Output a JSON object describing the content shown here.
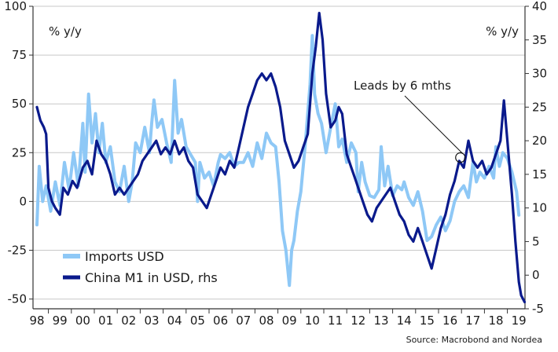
{
  "chart_data": {
    "type": "line",
    "title": "",
    "left_unit": "% y/y",
    "right_unit": "% y/y",
    "x_start_year": 1998,
    "x_end_year": 2019,
    "x_tick_labels": [
      "98",
      "99",
      "00",
      "01",
      "02",
      "03",
      "04",
      "05",
      "06",
      "07",
      "08",
      "09",
      "10",
      "11",
      "12",
      "13",
      "14",
      "15",
      "16",
      "17",
      "18",
      "19"
    ],
    "left_axis": {
      "ylim": [
        -55,
        100
      ],
      "ticks": [
        100,
        75,
        50,
        25,
        0,
        -25,
        -50
      ]
    },
    "right_axis": {
      "ylim": [
        -5,
        40
      ],
      "ticks": [
        40,
        35,
        30,
        25,
        20,
        15,
        10,
        5,
        0,
        -5
      ]
    },
    "grid": true,
    "legend_position": "bottom-left",
    "series": [
      {
        "name": "Imports USD",
        "axis": "left",
        "color": "#8ec8f6",
        "points": [
          [
            1998.0,
            -12
          ],
          [
            1998.1,
            18
          ],
          [
            1998.25,
            0
          ],
          [
            1998.4,
            8
          ],
          [
            1998.6,
            -5
          ],
          [
            1998.8,
            10
          ],
          [
            1999.0,
            -2
          ],
          [
            1999.2,
            20
          ],
          [
            1999.4,
            6
          ],
          [
            1999.6,
            25
          ],
          [
            1999.8,
            8
          ],
          [
            2000.0,
            40
          ],
          [
            2000.1,
            15
          ],
          [
            2000.25,
            55
          ],
          [
            2000.4,
            30
          ],
          [
            2000.55,
            45
          ],
          [
            2000.7,
            25
          ],
          [
            2000.85,
            40
          ],
          [
            2001.0,
            20
          ],
          [
            2001.2,
            28
          ],
          [
            2001.4,
            10
          ],
          [
            2001.6,
            5
          ],
          [
            2001.8,
            18
          ],
          [
            2002.0,
            0
          ],
          [
            2002.15,
            10
          ],
          [
            2002.3,
            30
          ],
          [
            2002.5,
            25
          ],
          [
            2002.7,
            38
          ],
          [
            2002.9,
            25
          ],
          [
            2003.0,
            40
          ],
          [
            2003.1,
            52
          ],
          [
            2003.25,
            38
          ],
          [
            2003.45,
            42
          ],
          [
            2003.65,
            30
          ],
          [
            2003.85,
            20
          ],
          [
            2004.0,
            62
          ],
          [
            2004.15,
            35
          ],
          [
            2004.3,
            42
          ],
          [
            2004.5,
            28
          ],
          [
            2004.7,
            24
          ],
          [
            2004.9,
            20
          ],
          [
            2005.0,
            0
          ],
          [
            2005.1,
            20
          ],
          [
            2005.3,
            12
          ],
          [
            2005.5,
            15
          ],
          [
            2005.7,
            8
          ],
          [
            2005.9,
            20
          ],
          [
            2006.0,
            24
          ],
          [
            2006.2,
            22
          ],
          [
            2006.4,
            25
          ],
          [
            2006.6,
            18
          ],
          [
            2006.8,
            20
          ],
          [
            2007.0,
            20
          ],
          [
            2007.2,
            25
          ],
          [
            2007.4,
            18
          ],
          [
            2007.6,
            30
          ],
          [
            2007.8,
            22
          ],
          [
            2008.0,
            35
          ],
          [
            2008.2,
            30
          ],
          [
            2008.4,
            28
          ],
          [
            2008.55,
            10
          ],
          [
            2008.7,
            -15
          ],
          [
            2008.85,
            -25
          ],
          [
            2009.0,
            -43
          ],
          [
            2009.1,
            -25
          ],
          [
            2009.2,
            -20
          ],
          [
            2009.35,
            -5
          ],
          [
            2009.5,
            5
          ],
          [
            2009.7,
            30
          ],
          [
            2009.9,
            60
          ],
          [
            2010.0,
            85
          ],
          [
            2010.1,
            55
          ],
          [
            2010.25,
            45
          ],
          [
            2010.4,
            40
          ],
          [
            2010.6,
            25
          ],
          [
            2010.8,
            38
          ],
          [
            2011.0,
            50
          ],
          [
            2011.15,
            28
          ],
          [
            2011.3,
            32
          ],
          [
            2011.5,
            20
          ],
          [
            2011.7,
            30
          ],
          [
            2011.9,
            25
          ],
          [
            2012.0,
            5
          ],
          [
            2012.15,
            20
          ],
          [
            2012.3,
            10
          ],
          [
            2012.5,
            3
          ],
          [
            2012.7,
            2
          ],
          [
            2012.9,
            6
          ],
          [
            2013.0,
            28
          ],
          [
            2013.15,
            8
          ],
          [
            2013.3,
            18
          ],
          [
            2013.5,
            3
          ],
          [
            2013.7,
            8
          ],
          [
            2013.9,
            6
          ],
          [
            2014.0,
            10
          ],
          [
            2014.2,
            2
          ],
          [
            2014.4,
            -2
          ],
          [
            2014.6,
            5
          ],
          [
            2014.8,
            -5
          ],
          [
            2015.0,
            -20
          ],
          [
            2015.2,
            -18
          ],
          [
            2015.4,
            -12
          ],
          [
            2015.6,
            -8
          ],
          [
            2015.8,
            -15
          ],
          [
            2016.0,
            -10
          ],
          [
            2016.2,
            0
          ],
          [
            2016.4,
            5
          ],
          [
            2016.6,
            8
          ],
          [
            2016.8,
            2
          ],
          [
            2017.0,
            20
          ],
          [
            2017.15,
            10
          ],
          [
            2017.3,
            15
          ],
          [
            2017.5,
            12
          ],
          [
            2017.7,
            18
          ],
          [
            2017.9,
            12
          ],
          [
            2018.0,
            28
          ],
          [
            2018.15,
            18
          ],
          [
            2018.3,
            25
          ],
          [
            2018.5,
            22
          ],
          [
            2018.7,
            15
          ],
          [
            2018.9,
            5
          ],
          [
            2019.0,
            -7
          ]
        ]
      },
      {
        "name": "China M1 in USD, rhs",
        "axis": "right",
        "color": "#0a1a8c",
        "points": [
          [
            1998.0,
            25
          ],
          [
            1998.15,
            23
          ],
          [
            1998.3,
            22
          ],
          [
            1998.4,
            21
          ],
          [
            1998.5,
            13
          ],
          [
            1998.65,
            11
          ],
          [
            1998.8,
            10
          ],
          [
            1999.0,
            9
          ],
          [
            1999.15,
            13
          ],
          [
            1999.35,
            12
          ],
          [
            1999.55,
            14
          ],
          [
            1999.75,
            13
          ],
          [
            2000.0,
            16
          ],
          [
            2000.2,
            17
          ],
          [
            2000.4,
            15
          ],
          [
            2000.6,
            20
          ],
          [
            2000.8,
            18
          ],
          [
            2001.0,
            17
          ],
          [
            2001.2,
            15
          ],
          [
            2001.4,
            12
          ],
          [
            2001.6,
            13
          ],
          [
            2001.8,
            12
          ],
          [
            2002.0,
            13
          ],
          [
            2002.2,
            14
          ],
          [
            2002.4,
            15
          ],
          [
            2002.6,
            17
          ],
          [
            2002.8,
            18
          ],
          [
            2003.0,
            19
          ],
          [
            2003.2,
            20
          ],
          [
            2003.4,
            18
          ],
          [
            2003.6,
            19
          ],
          [
            2003.8,
            18
          ],
          [
            2004.0,
            20
          ],
          [
            2004.2,
            18
          ],
          [
            2004.4,
            19
          ],
          [
            2004.6,
            17
          ],
          [
            2004.8,
            16
          ],
          [
            2005.0,
            12
          ],
          [
            2005.2,
            11
          ],
          [
            2005.4,
            10
          ],
          [
            2005.6,
            12
          ],
          [
            2005.8,
            14
          ],
          [
            2006.0,
            16
          ],
          [
            2006.2,
            15
          ],
          [
            2006.4,
            17
          ],
          [
            2006.6,
            16
          ],
          [
            2006.8,
            19
          ],
          [
            2007.0,
            22
          ],
          [
            2007.2,
            25
          ],
          [
            2007.4,
            27
          ],
          [
            2007.6,
            29
          ],
          [
            2007.8,
            30
          ],
          [
            2008.0,
            29
          ],
          [
            2008.2,
            30
          ],
          [
            2008.4,
            28
          ],
          [
            2008.6,
            25
          ],
          [
            2008.8,
            20
          ],
          [
            2009.0,
            18
          ],
          [
            2009.2,
            16
          ],
          [
            2009.4,
            17
          ],
          [
            2009.6,
            19
          ],
          [
            2009.8,
            21
          ],
          [
            2010.0,
            30
          ],
          [
            2010.15,
            34
          ],
          [
            2010.3,
            39
          ],
          [
            2010.45,
            35
          ],
          [
            2010.6,
            27
          ],
          [
            2010.8,
            22
          ],
          [
            2011.0,
            23
          ],
          [
            2011.15,
            25
          ],
          [
            2011.3,
            24
          ],
          [
            2011.5,
            18
          ],
          [
            2011.7,
            16
          ],
          [
            2011.9,
            14
          ],
          [
            2012.0,
            13
          ],
          [
            2012.2,
            11
          ],
          [
            2012.4,
            9
          ],
          [
            2012.6,
            8
          ],
          [
            2012.8,
            10
          ],
          [
            2013.0,
            11
          ],
          [
            2013.2,
            12
          ],
          [
            2013.4,
            13
          ],
          [
            2013.6,
            11
          ],
          [
            2013.8,
            9
          ],
          [
            2014.0,
            8
          ],
          [
            2014.2,
            6
          ],
          [
            2014.4,
            5
          ],
          [
            2014.6,
            7
          ],
          [
            2014.8,
            5
          ],
          [
            2015.0,
            3
          ],
          [
            2015.2,
            1
          ],
          [
            2015.4,
            4
          ],
          [
            2015.6,
            7
          ],
          [
            2015.8,
            9
          ],
          [
            2016.0,
            12
          ],
          [
            2016.2,
            14
          ],
          [
            2016.4,
            17
          ],
          [
            2016.6,
            16
          ],
          [
            2016.8,
            20
          ],
          [
            2017.0,
            17
          ],
          [
            2017.2,
            16
          ],
          [
            2017.4,
            17
          ],
          [
            2017.6,
            15
          ],
          [
            2017.8,
            16
          ],
          [
            2018.0,
            18
          ],
          [
            2018.2,
            20
          ],
          [
            2018.35,
            26
          ],
          [
            2018.5,
            20
          ],
          [
            2018.7,
            12
          ],
          [
            2018.85,
            5
          ],
          [
            2019.0,
            -1
          ],
          [
            2019.1,
            -3
          ],
          [
            2019.25,
            -4
          ]
        ]
      }
    ],
    "annotation": {
      "text": "Leads by 6 mths",
      "target": [
        2016.45,
        17.5
      ]
    },
    "source": "Source: Macrobond and Nordea"
  }
}
